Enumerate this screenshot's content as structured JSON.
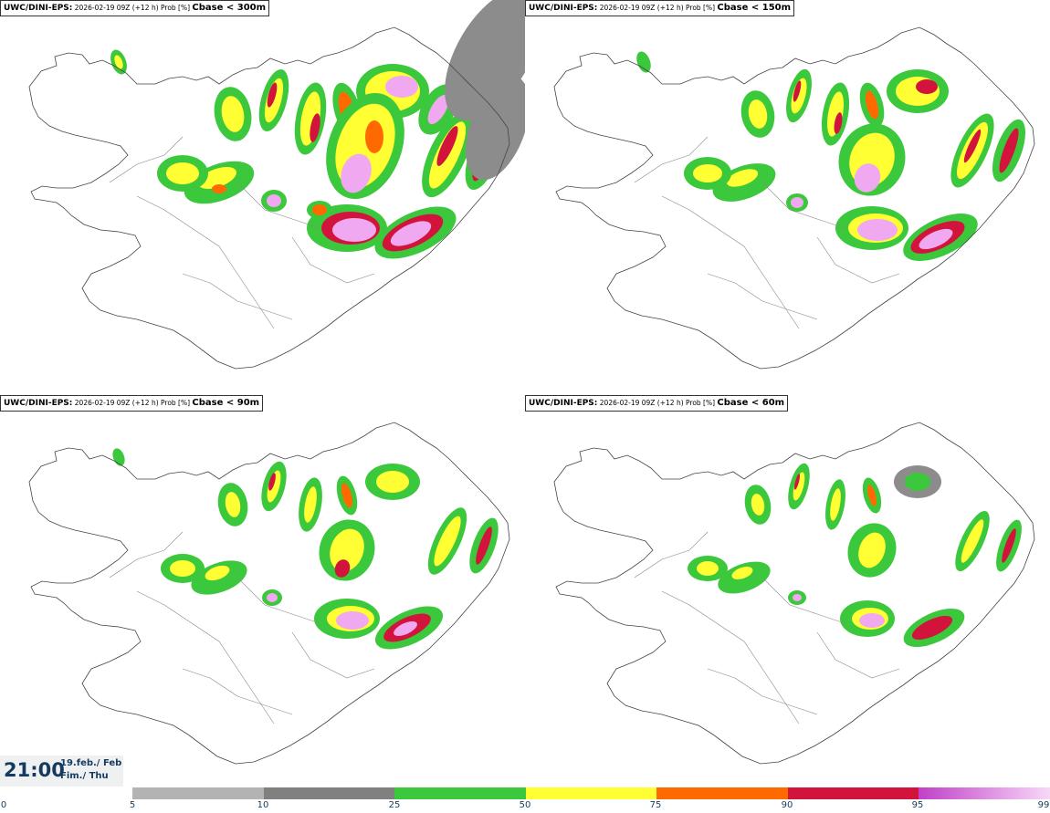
{
  "panels": [
    {
      "model": "UWC/DINI-EPS",
      "run": "2026-02-19 09Z (+12 h) Prob [%]",
      "variable": "Cbase < 300m"
    },
    {
      "model": "UWC/DINI-EPS",
      "run": "2026-02-19 09Z (+12 h) Prob [%]",
      "variable": "Cbase < 150m"
    },
    {
      "model": "UWC/DINI-EPS",
      "run": "2026-02-19 09Z (+12 h) Prob [%]",
      "variable": "Cbase < 90m"
    },
    {
      "model": "UWC/DINI-EPS",
      "run": "2026-02-19 09Z (+12 h) Prob [%]",
      "variable": "Cbase < 60m"
    }
  ],
  "valid_time": {
    "clock": "21:00",
    "date_line": "19.feb./ Feb",
    "day_line": "Fim./ Thu"
  },
  "colorbar": {
    "ticks": [
      "0",
      "5",
      "10",
      "25",
      "50",
      "75",
      "90",
      "95",
      "99"
    ],
    "colors": [
      "#b3b3b3",
      "#808080",
      "#3cc83c",
      "#ffff33",
      "#ff6a00",
      "#d2143c",
      "#c040c8"
    ]
  }
}
